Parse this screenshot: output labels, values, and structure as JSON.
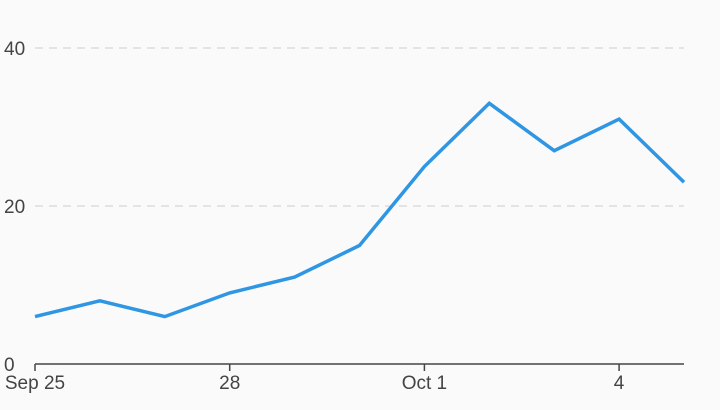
{
  "chart_data": {
    "type": "line",
    "x": [
      "2023-09-25",
      "2023-09-26",
      "2023-09-27",
      "2023-09-28",
      "2023-09-29",
      "2023-09-30",
      "2023-10-01",
      "2023-10-02",
      "2023-10-03",
      "2023-10-04",
      "2023-10-05"
    ],
    "series": [
      {
        "values": [
          6,
          8,
          6,
          9,
          11,
          15,
          25,
          33,
          27,
          31,
          23
        ],
        "color": "#2f96e3"
      }
    ],
    "title": "",
    "xlabel": "",
    "ylabel": "",
    "ylim": [
      0,
      40
    ],
    "y_ticks": [
      {
        "value": 0,
        "label": "0"
      },
      {
        "value": 20,
        "label": "20"
      },
      {
        "value": 40,
        "label": "40"
      }
    ],
    "x_ticks": [
      {
        "date": "2023-09-25",
        "label": "Sep 25"
      },
      {
        "date": "2023-09-28",
        "label": "28"
      },
      {
        "date": "2023-10-01",
        "label": "Oct 1"
      },
      {
        "date": "2023-10-04",
        "label": "4"
      }
    ],
    "grid": "horizontal-dashed",
    "legend": "none"
  }
}
